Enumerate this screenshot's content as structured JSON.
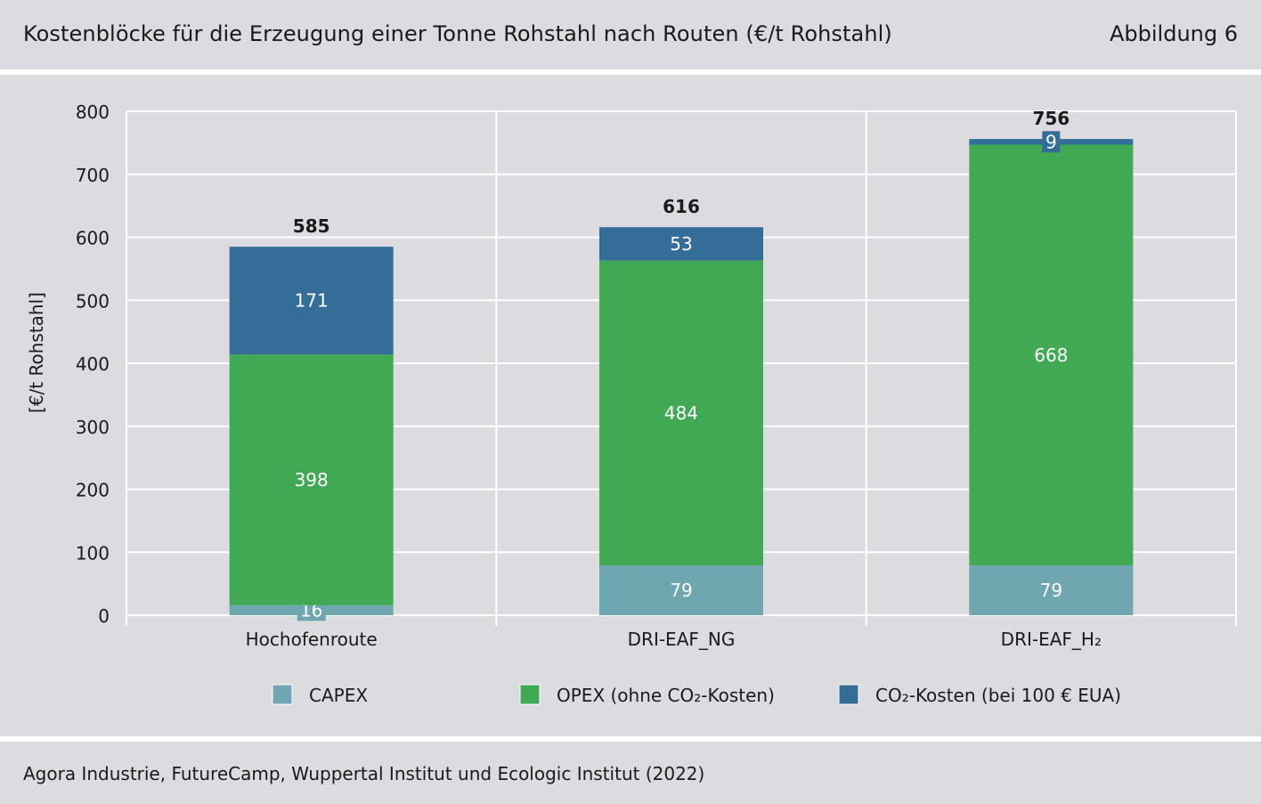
{
  "header": {
    "title": "Kostenblöcke für die Erzeugung einer Tonne Rohstahl nach Routen (€/t Rohstahl)",
    "figure_label": "Abbildung 6"
  },
  "footer": {
    "source": "Agora Industrie, FutureCamp, Wuppertal Institut und Ecologic Institut (2022)"
  },
  "colors": {
    "capex": "#6fa6b0",
    "opex": "#41a954",
    "co2": "#346d98",
    "panel_bg": "#dcdbe0",
    "grid": "#ffffff"
  },
  "chart_data": {
    "type": "bar",
    "stacked": true,
    "categories": [
      "Hochofenroute",
      "DRI-EAF_NG",
      "DRI-EAF_H₂"
    ],
    "series": [
      {
        "name": "CAPEX",
        "color": "#6fa6b0",
        "values": [
          16,
          79,
          79
        ]
      },
      {
        "name": "OPEX (ohne CO₂-Kosten)",
        "color": "#41a954",
        "values": [
          398,
          484,
          668
        ]
      },
      {
        "name": "CO₂-Kosten (bei 100 € EUA)",
        "color": "#346d98",
        "values": [
          171,
          53,
          9
        ]
      }
    ],
    "totals": [
      585,
      616,
      756
    ],
    "ylabel": "[€/t Rohstahl]",
    "ylim": [
      0,
      800
    ],
    "yticks": [
      0,
      100,
      200,
      300,
      400,
      500,
      600,
      700,
      800
    ],
    "grid": true,
    "legend_position": "bottom"
  }
}
